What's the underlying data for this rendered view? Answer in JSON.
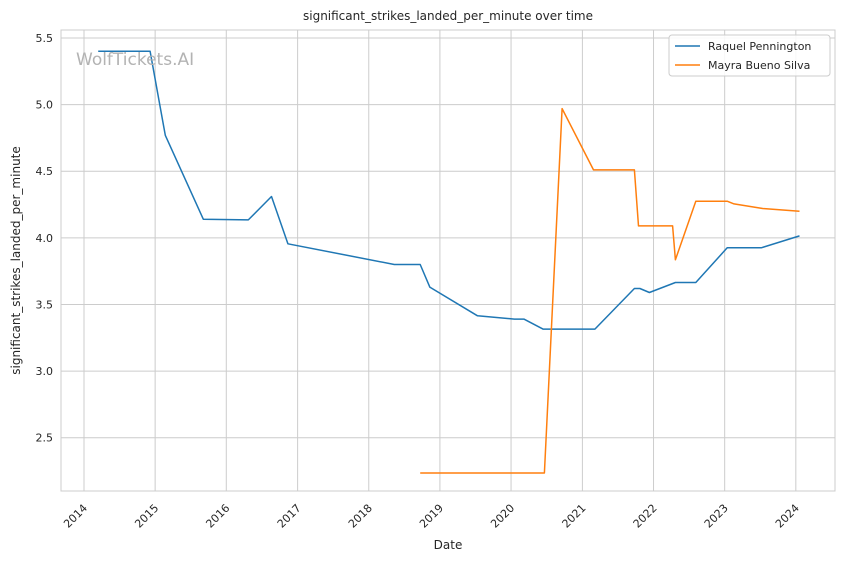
{
  "chart_data": {
    "type": "line",
    "title": "significant_strikes_landed_per_minute over time",
    "xlabel": "Date",
    "ylabel": "significant_strikes_landed_per_minute",
    "watermark": "WolfTickets.AI",
    "x_ticks": [
      "2014",
      "2015",
      "2016",
      "2017",
      "2018",
      "2019",
      "2020",
      "2021",
      "2022",
      "2023",
      "2024"
    ],
    "y_ticks": [
      "2.5",
      "3.0",
      "3.5",
      "4.0",
      "4.5",
      "5.0",
      "5.5"
    ],
    "xlim": [
      "2013-09-05",
      "2024-07-20"
    ],
    "ylim": [
      2.1,
      5.56
    ],
    "grid": true,
    "legend_position": "top-right",
    "series": [
      {
        "name": "Raquel Pennington",
        "color": "#1f77b4",
        "points": [
          [
            "2014-03-15",
            5.4
          ],
          [
            "2014-12-06",
            5.4
          ],
          [
            "2015-02-22",
            4.77
          ],
          [
            "2015-09-05",
            4.14
          ],
          [
            "2016-04-23",
            4.135
          ],
          [
            "2016-08-20",
            4.31
          ],
          [
            "2016-11-12",
            3.955
          ],
          [
            "2018-05-12",
            3.8
          ],
          [
            "2018-09-22",
            3.8
          ],
          [
            "2018-11-10",
            3.63
          ],
          [
            "2019-07-13",
            3.415
          ],
          [
            "2020-01-18",
            3.39
          ],
          [
            "2020-03-07",
            3.39
          ],
          [
            "2020-06-13",
            3.315
          ],
          [
            "2021-03-06",
            3.315
          ],
          [
            "2021-09-25",
            3.62
          ],
          [
            "2021-10-23",
            3.62
          ],
          [
            "2021-12-11",
            3.59
          ],
          [
            "2022-04-23",
            3.665
          ],
          [
            "2022-08-06",
            3.665
          ],
          [
            "2023-01-14",
            3.925
          ],
          [
            "2023-07-08",
            3.925
          ],
          [
            "2024-01-20",
            4.015
          ]
        ]
      },
      {
        "name": "Mayra Bueno Silva",
        "color": "#ff7f0e",
        "points": [
          [
            "2018-09-22",
            2.235
          ],
          [
            "2020-06-20",
            2.235
          ],
          [
            "2020-09-19",
            4.97
          ],
          [
            "2021-02-27",
            4.51
          ],
          [
            "2021-09-25",
            4.51
          ],
          [
            "2021-10-16",
            4.09
          ],
          [
            "2022-04-09",
            4.09
          ],
          [
            "2022-04-23",
            3.835
          ],
          [
            "2022-08-06",
            4.275
          ],
          [
            "2023-01-14",
            4.275
          ],
          [
            "2023-02-18",
            4.255
          ],
          [
            "2023-07-15",
            4.22
          ],
          [
            "2024-01-20",
            4.2
          ]
        ]
      }
    ]
  }
}
